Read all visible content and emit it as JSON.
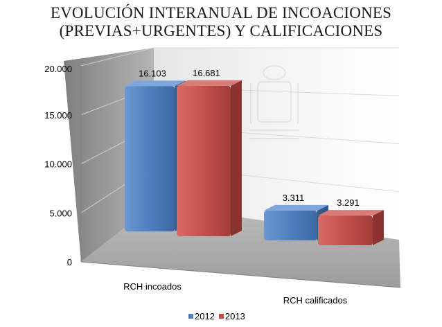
{
  "chart_data": {
    "type": "bar",
    "title": "EVOLUCIÓN INTERANUAL DE INCOACIONES",
    "subtitle": "(PREVIAS+URGENTES) Y CALIFICACIONES",
    "categories": [
      "RCH incoados",
      "RCH calificados"
    ],
    "series": [
      {
        "name": "2012",
        "values": [
          16103,
          3311
        ],
        "labels": [
          "16.103",
          "3.311"
        ],
        "color": "#4f81bd"
      },
      {
        "name": "2013",
        "values": [
          16681,
          3291
        ],
        "labels": [
          "16.681",
          "3.291"
        ],
        "color": "#c0504d"
      }
    ],
    "yticks": [
      {
        "value": 0,
        "label": "0"
      },
      {
        "value": 5000,
        "label": "5.000"
      },
      {
        "value": 10000,
        "label": "10.000"
      },
      {
        "value": 15000,
        "label": "15.000"
      },
      {
        "value": 20000,
        "label": "20.000"
      }
    ],
    "ylim": [
      0,
      20000
    ],
    "grid": true,
    "legend": "bottom",
    "perspective": "3d"
  }
}
